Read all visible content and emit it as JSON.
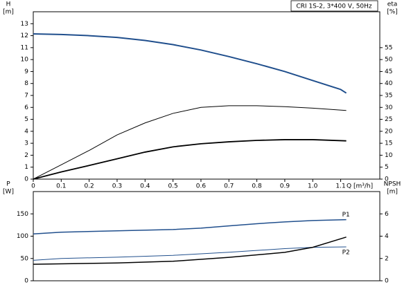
{
  "chart_data": [
    {
      "type": "line",
      "title": "CRI 1S-2, 3*400 V, 50Hz",
      "y_label": "H",
      "y_unit": "[m]",
      "y2_label": "eta",
      "y2_unit": "[%]",
      "x_label": "Q [m³/h]",
      "xlim": [
        0,
        1.24
      ],
      "xticks": [
        0,
        0.1,
        0.2,
        0.3,
        0.4,
        0.5,
        0.6,
        0.7,
        0.8,
        0.9,
        {
          "value": 1,
          "label": "1.0"
        },
        1.1
      ],
      "ylim": [
        0,
        14
      ],
      "yticks": [
        0,
        1,
        2,
        3,
        4,
        5,
        6,
        7,
        8,
        9,
        10,
        11,
        12,
        13
      ],
      "y2lim": [
        0,
        70
      ],
      "y2ticks": [
        0,
        5,
        10,
        15,
        20,
        25,
        30,
        35,
        40,
        45,
        50,
        55
      ],
      "series": [
        {
          "color": "#1f4e8c",
          "width": 2,
          "x": [
            0,
            0.1,
            0.2,
            0.3,
            0.4,
            0.5,
            0.6,
            0.7,
            0.8,
            0.9,
            1.0,
            1.1,
            1.12
          ],
          "values": [
            12.15,
            12.1,
            12.0,
            11.85,
            11.6,
            11.25,
            10.8,
            10.25,
            9.65,
            9.0,
            8.25,
            7.5,
            7.2
          ]
        },
        {
          "color": "#000000",
          "width": 1,
          "axis": "y2",
          "x": [
            0,
            0.1,
            0.2,
            0.3,
            0.4,
            0.5,
            0.6,
            0.7,
            0.8,
            0.9,
            1.0,
            1.12
          ],
          "values": [
            0,
            6,
            12,
            18.5,
            23.5,
            27.5,
            30,
            30.7,
            30.7,
            30.3,
            29.7,
            28.7
          ]
        },
        {
          "color": "#000000",
          "width": 1.8,
          "axis": "y2",
          "x": [
            0,
            0.1,
            0.2,
            0.3,
            0.4,
            0.5,
            0.6,
            0.7,
            0.8,
            0.9,
            1.0,
            1.12
          ],
          "values": [
            0,
            3,
            5.7,
            8.5,
            11.3,
            13.5,
            14.8,
            15.6,
            16.2,
            16.5,
            16.5,
            16
          ]
        }
      ]
    },
    {
      "type": "line",
      "y_label": "P",
      "y_unit": "[W]",
      "y2_label": "NPSH",
      "y2_unit": "[m]",
      "xlim": [
        0,
        1.24
      ],
      "ylim": [
        0,
        200
      ],
      "yticks": [
        0,
        50,
        100,
        150
      ],
      "y2lim": [
        0,
        8
      ],
      "y2ticks": [
        0,
        2,
        4,
        6
      ],
      "series": [
        {
          "name": "P1",
          "color": "#1f4e8c",
          "width": 1.5,
          "x": [
            0,
            0.1,
            0.3,
            0.5,
            0.6,
            0.7,
            0.8,
            0.9,
            1.0,
            1.12
          ],
          "values": [
            105,
            109,
            112,
            115,
            118,
            123,
            128,
            132,
            135,
            137
          ]
        },
        {
          "name": "P2",
          "color": "#1f4e8c",
          "width": 1,
          "x": [
            0,
            0.1,
            0.3,
            0.5,
            0.7,
            0.9,
            1.0,
            1.12
          ],
          "values": [
            46,
            50,
            53,
            57,
            64,
            72,
            75,
            76
          ]
        },
        {
          "color": "#000000",
          "width": 1.5,
          "axis": "y2",
          "x": [
            0,
            0.3,
            0.5,
            0.7,
            0.9,
            1.0,
            1.12
          ],
          "values": [
            1.48,
            1.6,
            1.75,
            2.1,
            2.55,
            3.0,
            3.92
          ]
        }
      ]
    }
  ]
}
